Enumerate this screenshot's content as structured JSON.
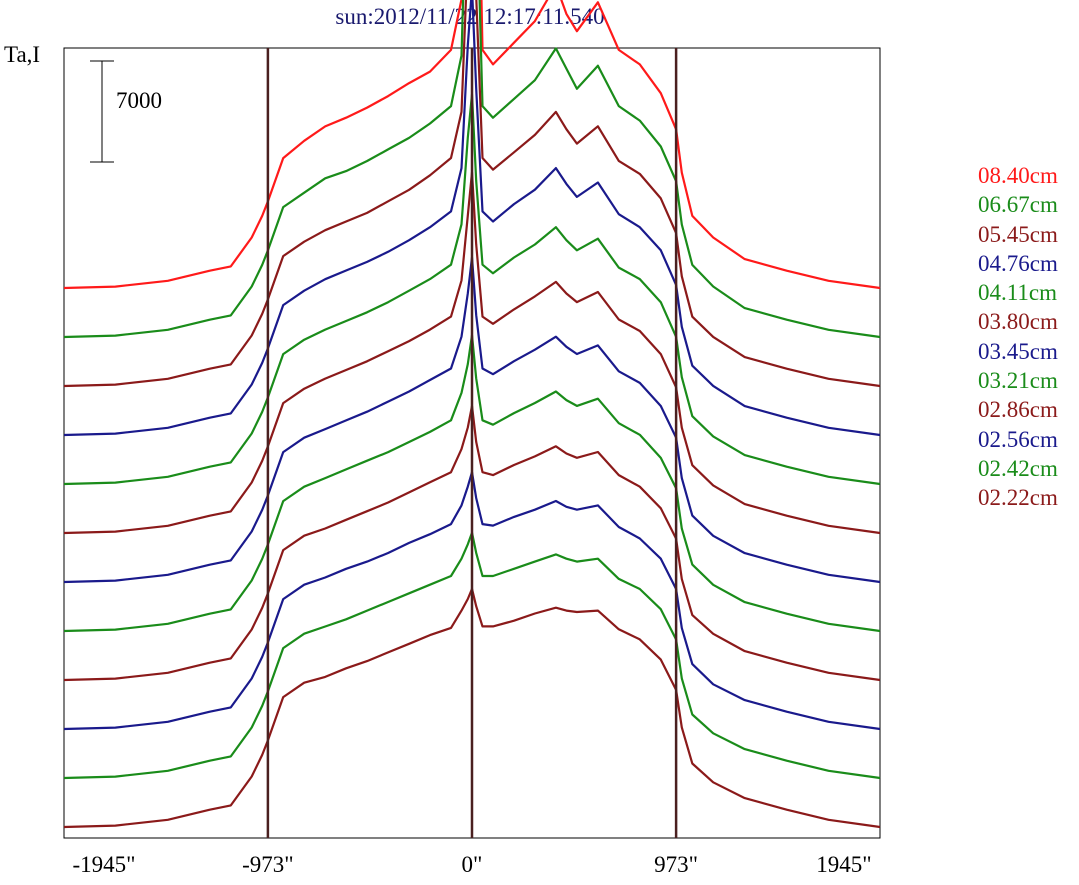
{
  "chart_data": {
    "type": "line",
    "title": "sun:2012/11/22 12:17:11.540",
    "ylabel": "Ta,I",
    "scale_bar_label": "7000",
    "scale_bar_value": 7000,
    "xlim": [
      -1945,
      1945
    ],
    "x_ticks": [
      {
        "value": -1945,
        "label": "-1945\""
      },
      {
        "value": -973,
        "label": "-973\""
      },
      {
        "value": 0,
        "label": "0\""
      },
      {
        "value": 973,
        "label": "973\""
      },
      {
        "value": 1945,
        "label": "1945\""
      }
    ],
    "vertical_markers": [
      -973,
      0,
      973
    ],
    "grid": false,
    "legend_position": "right",
    "x": [
      -1945,
      -1700,
      -1450,
      -1250,
      -1150,
      -1050,
      -1000,
      -973,
      -900,
      -800,
      -700,
      -600,
      -500,
      -400,
      -300,
      -200,
      -100,
      -50,
      -20,
      0,
      20,
      50,
      100,
      200,
      300,
      400,
      450,
      500,
      600,
      700,
      800,
      900,
      973,
      1000,
      1050,
      1150,
      1300,
      1500,
      1700,
      1945
    ],
    "series": [
      {
        "name": "08.40cm",
        "color": "#ff1a1a",
        "values": [
          0,
          100,
          500,
          1200,
          1500,
          3500,
          5000,
          6000,
          9000,
          10200,
          11200,
          11800,
          12500,
          13300,
          14200,
          15000,
          16500,
          20000,
          40000,
          45000,
          38000,
          16500,
          15500,
          17000,
          18500,
          21000,
          19000,
          17800,
          19800,
          16500,
          15500,
          13500,
          11000,
          8000,
          5000,
          3500,
          2000,
          1200,
          500,
          0
        ]
      },
      {
        "name": "06.67cm",
        "color": "#1a8c1a",
        "values": [
          0,
          100,
          500,
          1200,
          1500,
          3500,
          5000,
          6000,
          9000,
          10000,
          11000,
          11500,
          12200,
          13000,
          13800,
          14800,
          16000,
          19500,
          35000,
          42000,
          32000,
          16000,
          15200,
          16500,
          17800,
          20000,
          18600,
          17200,
          18800,
          16000,
          15000,
          13200,
          10800,
          7800,
          5000,
          3500,
          2000,
          1200,
          500,
          0
        ]
      },
      {
        "name": "05.45cm",
        "color": "#8b1a1a",
        "values": [
          0,
          100,
          500,
          1200,
          1500,
          3500,
          5000,
          6000,
          9000,
          10000,
          10800,
          11400,
          12000,
          12800,
          13600,
          14600,
          15800,
          19000,
          30000,
          36000,
          27000,
          15800,
          15000,
          16200,
          17400,
          19000,
          17800,
          16800,
          18000,
          15600,
          14700,
          13000,
          10600,
          7600,
          4800,
          3400,
          2000,
          1200,
          500,
          0
        ]
      },
      {
        "name": "04.76cm",
        "color": "#1a1a8c",
        "values": [
          0,
          100,
          500,
          1200,
          1500,
          3500,
          5000,
          6000,
          9000,
          10000,
          10800,
          11400,
          12000,
          12700,
          13500,
          14400,
          15500,
          18500,
          27000,
          31000,
          24000,
          15500,
          14800,
          16000,
          17000,
          18500,
          17400,
          16500,
          17500,
          15300,
          14400,
          12800,
          10400,
          7500,
          4800,
          3400,
          2000,
          1200,
          500,
          0
        ]
      },
      {
        "name": "04.11cm",
        "color": "#1a8c1a",
        "values": [
          0,
          100,
          500,
          1200,
          1500,
          3500,
          5000,
          6000,
          9000,
          10000,
          10700,
          11300,
          11900,
          12600,
          13400,
          14200,
          15200,
          18000,
          24000,
          27000,
          21000,
          15200,
          14600,
          15700,
          16600,
          17800,
          16900,
          16200,
          17000,
          15000,
          14200,
          12600,
          10200,
          7400,
          4700,
          3300,
          2000,
          1200,
          500,
          0
        ]
      },
      {
        "name": "03.80cm",
        "color": "#8b1a1a",
        "values": [
          0,
          100,
          500,
          1200,
          1500,
          3500,
          5000,
          6000,
          9000,
          10000,
          10700,
          11300,
          11900,
          12600,
          13300,
          14100,
          15000,
          17500,
          22000,
          25000,
          20000,
          15000,
          14500,
          15500,
          16400,
          17400,
          16600,
          16000,
          16700,
          14800,
          14000,
          12400,
          10100,
          7300,
          4700,
          3300,
          2000,
          1200,
          500,
          0
        ]
      },
      {
        "name": "03.45cm",
        "color": "#1a1a8c",
        "values": [
          0,
          100,
          500,
          1200,
          1500,
          3500,
          5000,
          6000,
          9000,
          10000,
          10600,
          11200,
          11800,
          12500,
          13200,
          14000,
          14800,
          17000,
          20000,
          22500,
          18500,
          14800,
          14400,
          15300,
          16100,
          17000,
          16300,
          15800,
          16400,
          14600,
          13800,
          12200,
          10000,
          7200,
          4600,
          3200,
          2000,
          1200,
          500,
          0
        ]
      },
      {
        "name": "03.21cm",
        "color": "#1a8c1a",
        "values": [
          0,
          100,
          500,
          1200,
          1500,
          3500,
          5000,
          6000,
          9000,
          10000,
          10600,
          11200,
          11800,
          12400,
          13100,
          13800,
          14600,
          16500,
          18500,
          20500,
          17500,
          14600,
          14300,
          15100,
          15800,
          16600,
          16000,
          15600,
          16100,
          14400,
          13600,
          12000,
          9900,
          7100,
          4600,
          3200,
          2000,
          1200,
          500,
          0
        ]
      },
      {
        "name": "02.86cm",
        "color": "#8b1a1a",
        "values": [
          0,
          100,
          500,
          1200,
          1500,
          3500,
          5000,
          6000,
          9000,
          10000,
          10500,
          11100,
          11700,
          12300,
          13000,
          13700,
          14400,
          16000,
          17500,
          19000,
          16500,
          14400,
          14200,
          14900,
          15500,
          16200,
          15700,
          15400,
          15800,
          14200,
          13400,
          11900,
          9800,
          7000,
          4500,
          3200,
          2000,
          1200,
          500,
          0
        ]
      },
      {
        "name": "02.56cm",
        "color": "#1a1a8c",
        "values": [
          0,
          100,
          500,
          1200,
          1500,
          3500,
          5000,
          6000,
          9000,
          10000,
          10500,
          11100,
          11600,
          12200,
          12900,
          13500,
          14200,
          15500,
          16800,
          17800,
          16000,
          14200,
          14100,
          14700,
          15200,
          15800,
          15400,
          15200,
          15500,
          14000,
          13200,
          11800,
          9700,
          7000,
          4500,
          3100,
          2000,
          1200,
          500,
          0
        ]
      },
      {
        "name": "02.42cm",
        "color": "#1a8c1a",
        "values": [
          0,
          100,
          500,
          1200,
          1500,
          3500,
          5000,
          6000,
          9000,
          10000,
          10500,
          11000,
          11600,
          12200,
          12800,
          13400,
          14000,
          15200,
          16200,
          17000,
          15600,
          14000,
          14000,
          14500,
          15000,
          15500,
          15200,
          15000,
          15200,
          13800,
          13100,
          11700,
          9600,
          6900,
          4400,
          3100,
          2000,
          1200,
          500,
          0
        ]
      },
      {
        "name": "02.22cm",
        "color": "#8b1a1a",
        "values": [
          0,
          100,
          500,
          1200,
          1500,
          3500,
          5000,
          6000,
          9000,
          10000,
          10400,
          11000,
          11500,
          12100,
          12700,
          13300,
          13800,
          15000,
          15800,
          16500,
          15300,
          13900,
          13900,
          14300,
          14800,
          15200,
          15000,
          14900,
          15000,
          13700,
          13000,
          11600,
          9500,
          6900,
          4400,
          3100,
          2000,
          1200,
          500,
          0
        ]
      }
    ]
  }
}
